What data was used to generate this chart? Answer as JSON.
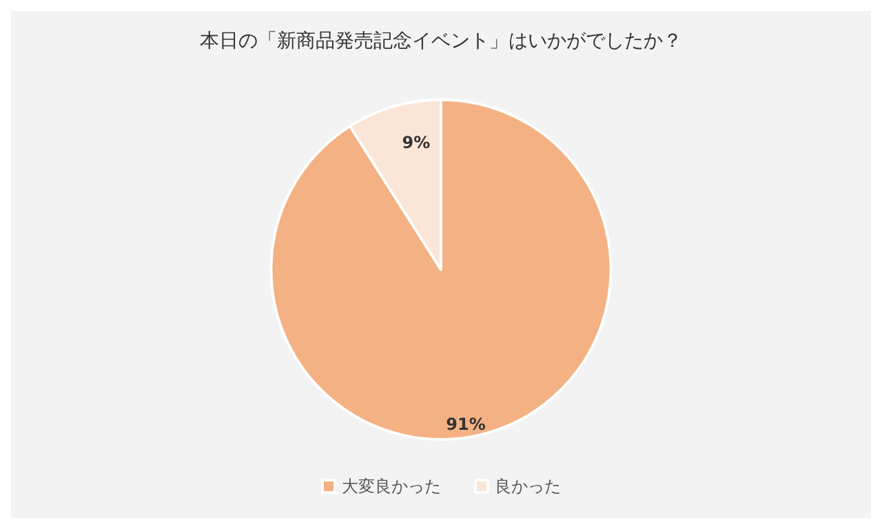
{
  "chart_data": {
    "type": "pie",
    "title": "本日の「新商品発売記念イベント」はいかがでしたか？",
    "categories": [
      "大変良かった",
      "良かった"
    ],
    "values": [
      91,
      9
    ],
    "value_labels": [
      "91%",
      "9%"
    ],
    "colors": [
      "#f4b183",
      "#fbe5d6"
    ],
    "legend": "bottom"
  }
}
